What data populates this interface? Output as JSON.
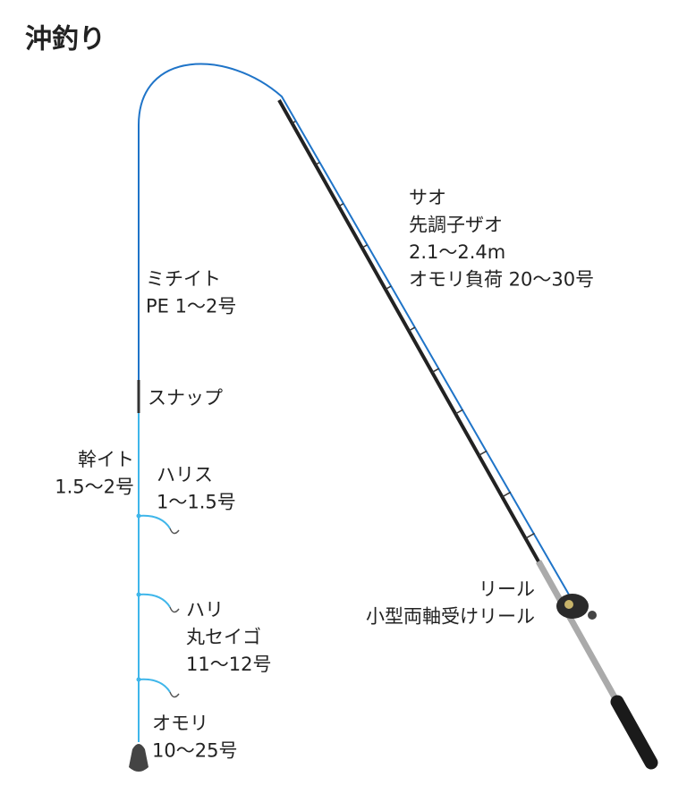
{
  "title": "沖釣り",
  "labels": [
    {
      "lines": [
        "ミチイト",
        "PE 1〜2号"
      ]
    },
    {
      "lines": [
        "スナップ"
      ]
    },
    {
      "lines": [
        "幹イト",
        "1.5〜2号"
      ]
    },
    {
      "lines": [
        "ハリス",
        "1〜1.5号"
      ]
    },
    {
      "lines": [
        "サオ",
        "先調子ザオ",
        "2.1〜2.4m",
        "オモリ負荷 20〜30号"
      ]
    },
    {
      "lines": [
        "リール",
        "小型両軸受けリール"
      ]
    },
    {
      "lines": [
        "ハリ",
        "丸セイゴ",
        "11〜12号"
      ]
    },
    {
      "lines": [
        "オモリ",
        "10〜25号"
      ]
    }
  ]
}
